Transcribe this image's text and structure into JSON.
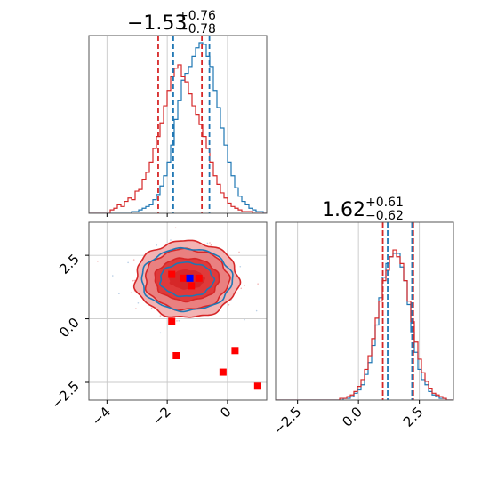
{
  "chart_data": {
    "type": "corner",
    "colors": {
      "blue": "#1f77b4",
      "red": "#d62728",
      "marker_red": "#ff0000",
      "marker_blue": "#0000ff"
    },
    "grid": true,
    "params": [
      {
        "title": {
          "median": "−1.53",
          "plus": "+0.76",
          "minus": "−0.78"
        }
      },
      {
        "title": {
          "median": "1.62",
          "plus": "+0.61",
          "minus": "−0.62"
        }
      }
    ],
    "hist_x": {
      "xlim": [
        -4.6,
        1.3
      ],
      "blue": {
        "edges_start": -4.6,
        "bin": 0.118,
        "counts": [
          0,
          0,
          0,
          0,
          0,
          0,
          0,
          0,
          0,
          0,
          0,
          0,
          1,
          1,
          2,
          3,
          4,
          5,
          8,
          11,
          16,
          22,
          30,
          40,
          55,
          66,
          78,
          82,
          86,
          92,
          97,
          100,
          99,
          92,
          86,
          72,
          62,
          50,
          40,
          30,
          22,
          15,
          10,
          7,
          5,
          3,
          2,
          1,
          1,
          0,
          0
        ]
      },
      "red": {
        "edges_start": -4.6,
        "bin": 0.118,
        "counts": [
          0,
          0,
          0,
          0,
          0,
          0,
          2,
          3,
          5,
          4,
          7,
          9,
          8,
          13,
          14,
          20,
          24,
          30,
          38,
          45,
          53,
          63,
          72,
          80,
          85,
          87,
          80,
          77,
          70,
          63,
          58,
          52,
          45,
          38,
          30,
          22,
          17,
          12,
          9,
          6,
          4,
          3,
          2,
          1,
          1,
          1,
          0,
          0,
          0,
          0,
          0
        ]
      },
      "quantiles_blue": [
        -1.8,
        -0.6
      ],
      "quantiles_red": [
        -2.3,
        -0.85
      ]
    },
    "hist_y": {
      "xlim": [
        -3.4,
        3.9
      ],
      "blue": {
        "edges_start": -3.4,
        "bin": 0.146,
        "counts": [
          0,
          0,
          0,
          0,
          0,
          0,
          0,
          0,
          0,
          0,
          0,
          0,
          0,
          0,
          0,
          0,
          0,
          0,
          0,
          1,
          1,
          2,
          4,
          6,
          9,
          15,
          22,
          32,
          44,
          60,
          72,
          80,
          84,
          86,
          86,
          78,
          70,
          56,
          40,
          28,
          18,
          12,
          9,
          5,
          3,
          2,
          1,
          1,
          0,
          0
        ]
      },
      "red": {
        "edges_start": -3.4,
        "bin": 0.146,
        "counts": [
          0,
          0,
          0,
          0,
          0,
          0,
          0,
          0,
          0,
          0,
          0,
          0,
          0,
          0,
          0,
          0,
          0,
          0,
          1,
          1,
          2,
          3,
          5,
          8,
          12,
          18,
          26,
          36,
          48,
          58,
          70,
          76,
          84,
          88,
          84,
          80,
          70,
          58,
          46,
          34,
          24,
          16,
          11,
          7,
          4,
          3,
          2,
          1,
          0,
          0
        ]
      },
      "quantiles_blue": [
        1.2,
        2.2
      ],
      "quantiles_red": [
        1.0,
        2.25
      ]
    },
    "scatter_2d": {
      "xlim": [
        -4.6,
        1.3
      ],
      "ylim": [
        -3.2,
        3.8
      ],
      "center": [
        -1.35,
        1.55
      ],
      "red_markers": [
        {
          "x": -1.85,
          "y": 1.75
        },
        {
          "x": -1.45,
          "y": 1.6
        },
        {
          "x": -1.2,
          "y": 1.3
        },
        {
          "x": -0.95,
          "y": 1.6
        },
        {
          "x": -1.85,
          "y": -0.1
        },
        {
          "x": -1.7,
          "y": -1.45
        },
        {
          "x": 0.25,
          "y": -1.25
        },
        {
          "x": -0.15,
          "y": -2.1
        },
        {
          "x": 1.0,
          "y": -2.65
        }
      ],
      "blue_marker": {
        "x": -1.25,
        "y": 1.6
      }
    },
    "ticks_x": [
      {
        "value": -4,
        "label": "−4"
      },
      {
        "value": -2,
        "label": "−2"
      },
      {
        "value": 0,
        "label": "0"
      }
    ],
    "ticks_y_left": [
      {
        "value": 2.5,
        "label": "2.5"
      },
      {
        "value": 0,
        "label": "0.0"
      },
      {
        "value": -2.5,
        "label": "−2.5"
      }
    ],
    "ticks_x_right": [
      {
        "value": -2.5,
        "label": "−2.5"
      },
      {
        "value": 0,
        "label": "0.0"
      },
      {
        "value": 2.5,
        "label": "2.5"
      }
    ]
  }
}
